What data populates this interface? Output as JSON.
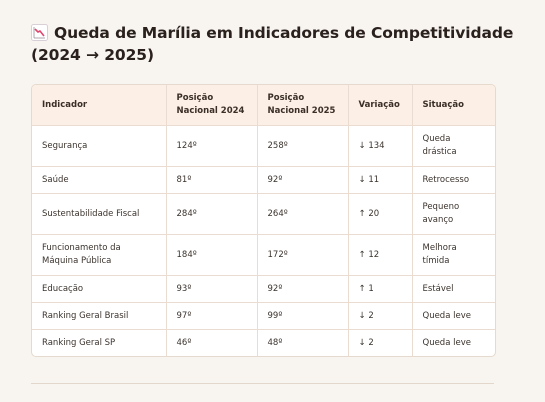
{
  "heading": {
    "icon": "chart-decreasing-icon",
    "line1": "Queda de Marília em Indicadores de Competitividade",
    "line2": "(2024 → 2025)"
  },
  "table": {
    "headers": {
      "indicador": "Indicador",
      "pos2024_l1": "Posição",
      "pos2024_l2": "Nacional 2024",
      "pos2025_l1": "Posição",
      "pos2025_l2": "Nacional 2025",
      "variacao": "Variação",
      "situacao": "Situação"
    },
    "rows": [
      {
        "indicador_l1": "Segurança",
        "indicador_l2": "",
        "pos2024": "124º",
        "pos2025": "258º",
        "variacao": "↓ 134",
        "situacao_l1": "Queda",
        "situacao_l2": "drástica"
      },
      {
        "indicador_l1": "Saúde",
        "indicador_l2": "",
        "pos2024": "81º",
        "pos2025": "92º",
        "variacao": "↓ 11",
        "situacao_l1": "Retrocesso",
        "situacao_l2": ""
      },
      {
        "indicador_l1": "Sustentabilidade Fiscal",
        "indicador_l2": "",
        "pos2024": "284º",
        "pos2025": "264º",
        "variacao": "↑ 20",
        "situacao_l1": "Pequeno",
        "situacao_l2": "avanço"
      },
      {
        "indicador_l1": "Funcionamento da",
        "indicador_l2": "Máquina Pública",
        "pos2024": "184º",
        "pos2025": "172º",
        "variacao": "↑ 12",
        "situacao_l1": "Melhora",
        "situacao_l2": "tímida"
      },
      {
        "indicador_l1": "Educação",
        "indicador_l2": "",
        "pos2024": "93º",
        "pos2025": "92º",
        "variacao": "↑ 1",
        "situacao_l1": "Estável",
        "situacao_l2": ""
      },
      {
        "indicador_l1": "Ranking Geral Brasil",
        "indicador_l2": "",
        "pos2024": "97º",
        "pos2025": "99º",
        "variacao": "↓ 2",
        "situacao_l1": "Queda leve",
        "situacao_l2": ""
      },
      {
        "indicador_l1": "Ranking Geral SP",
        "indicador_l2": "",
        "pos2024": "46º",
        "pos2025": "48º",
        "variacao": "↓ 2",
        "situacao_l1": "Queda leve",
        "situacao_l2": ""
      }
    ]
  }
}
